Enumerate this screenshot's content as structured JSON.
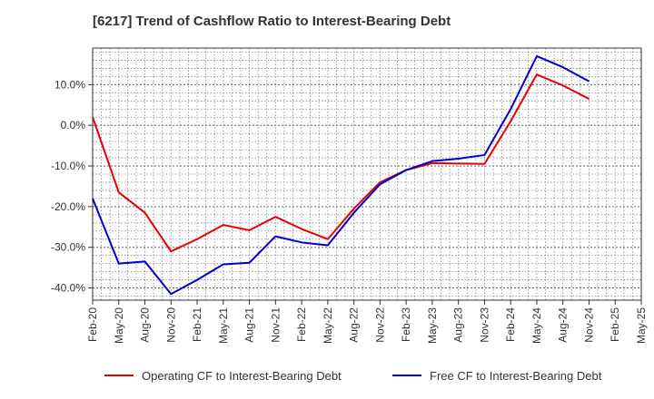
{
  "chart_data": {
    "type": "line",
    "title": "[6217]  Trend of Cashflow Ratio to Interest-Bearing Debt",
    "xlabel": "",
    "ylabel": "",
    "categories": [
      "Feb-20",
      "May-20",
      "Aug-20",
      "Nov-20",
      "Feb-21",
      "May-21",
      "Aug-21",
      "Nov-21",
      "Feb-22",
      "May-22",
      "Aug-22",
      "Nov-22",
      "Feb-23",
      "May-23",
      "Aug-23",
      "Nov-23",
      "Feb-24",
      "May-24",
      "Aug-24",
      "Nov-24",
      "Feb-25",
      "May-25"
    ],
    "x_tick_labels": [
      "Feb-20",
      "May-20",
      "Aug-20",
      "Nov-20",
      "Feb-21",
      "May-21",
      "Aug-21",
      "Nov-21",
      "Feb-22",
      "May-22",
      "Aug-22",
      "Nov-22",
      "Feb-23",
      "May-23",
      "Aug-23",
      "Nov-23",
      "Feb-24",
      "May-24",
      "Aug-24",
      "Nov-24",
      "Feb-25",
      "May-25"
    ],
    "y_ticks": [
      10,
      0,
      -10,
      -20,
      -30,
      -40
    ],
    "y_tick_labels": [
      "10.0%",
      "0.0%",
      "-10.0%",
      "-20.0%",
      "-30.0%",
      "-40.0%"
    ],
    "ylim": [
      -43,
      19
    ],
    "grid": true,
    "legend_position": "bottom",
    "series": [
      {
        "name": "Operating CF to Interest-Bearing Debt",
        "color": "#e60000",
        "values": [
          2.0,
          -16.5,
          -21.5,
          -31.0,
          -28.0,
          -24.5,
          -25.8,
          -22.5,
          -25.5,
          -28.0,
          -20.5,
          -14.0,
          -11.0,
          -9.3,
          -9.4,
          -9.5,
          1.0,
          12.5,
          9.8,
          6.5,
          null,
          null
        ]
      },
      {
        "name": "Free CF to Interest-Bearing Debt",
        "color": "#0000cc",
        "values": [
          -18.0,
          -34.0,
          -33.5,
          -41.5,
          -38.0,
          -34.2,
          -33.8,
          -27.3,
          -28.8,
          -29.5,
          -21.5,
          -14.5,
          -11.0,
          -8.8,
          -8.2,
          -7.3,
          4.0,
          17.0,
          14.3,
          10.8,
          null,
          null
        ]
      }
    ]
  }
}
